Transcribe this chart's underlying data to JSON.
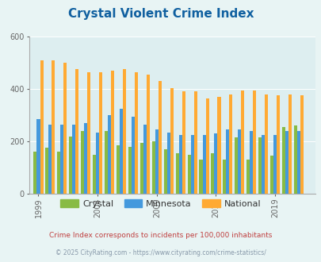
{
  "title": "Crystal Violent Crime Index",
  "title_color": "#1060a0",
  "subtitle": "Crime Index corresponds to incidents per 100,000 inhabitants",
  "subtitle_color": "#c04040",
  "footer": "© 2025 CityRating.com - https://www.cityrating.com/crime-statistics/",
  "footer_color": "#8899aa",
  "years": [
    1999,
    2000,
    2001,
    2002,
    2003,
    2004,
    2005,
    2006,
    2007,
    2008,
    2009,
    2010,
    2011,
    2012,
    2013,
    2014,
    2015,
    2016,
    2017,
    2018,
    2019,
    2020,
    2021
  ],
  "crystal": [
    160,
    175,
    160,
    220,
    240,
    150,
    240,
    185,
    180,
    195,
    200,
    170,
    155,
    150,
    130,
    155,
    130,
    215,
    130,
    215,
    145,
    255,
    260
  ],
  "minnesota": [
    285,
    265,
    265,
    265,
    270,
    235,
    300,
    325,
    295,
    265,
    245,
    235,
    225,
    225,
    225,
    230,
    245,
    245,
    240,
    225,
    225,
    240,
    240
  ],
  "national": [
    510,
    510,
    500,
    475,
    465,
    465,
    470,
    475,
    465,
    455,
    430,
    405,
    390,
    390,
    365,
    370,
    380,
    395,
    395,
    380,
    375,
    380,
    375
  ],
  "crystal_color": "#88bb44",
  "minnesota_color": "#4499dd",
  "national_color": "#ffaa33",
  "bg_color": "#e8f4f4",
  "plot_bg_color": "#ddeef0",
  "ylim": [
    0,
    600
  ],
  "yticks": [
    0,
    200,
    400,
    600
  ],
  "bar_width": 0.27,
  "xtick_labels": [
    "1999",
    "2004",
    "2009",
    "2014",
    "2019"
  ],
  "xtick_positions": [
    1999,
    2004,
    2009,
    2014,
    2019
  ]
}
